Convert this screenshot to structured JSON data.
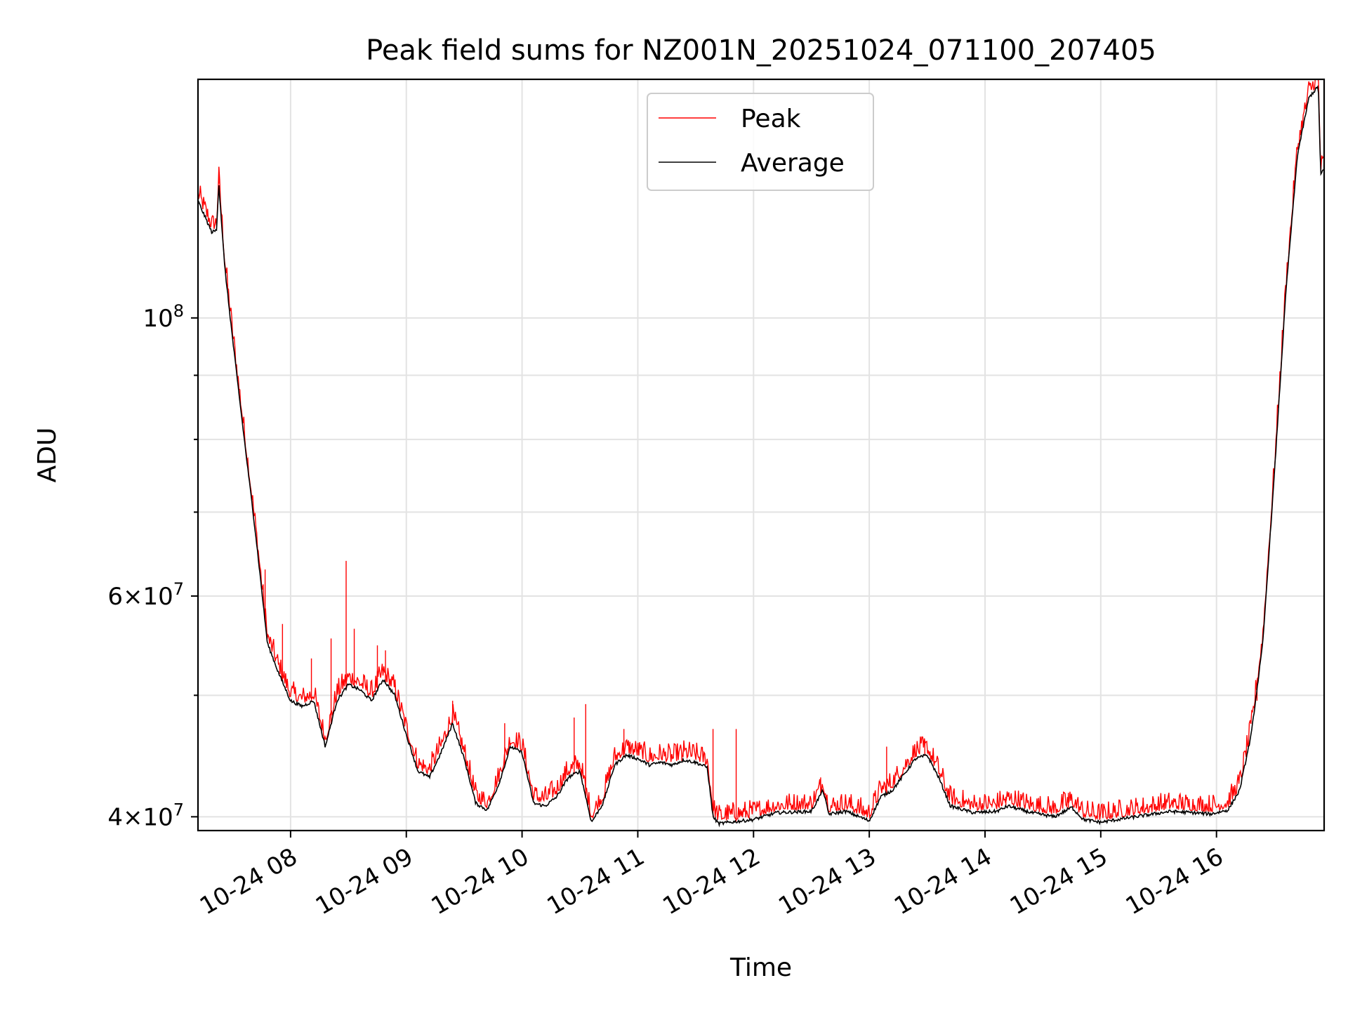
{
  "chart_data": {
    "type": "line",
    "title": "Peak field sums for NZ001N_20251024_071100_207405",
    "xlabel": "Time",
    "ylabel": "ADU",
    "yscale": "log",
    "xlim_hours": [
      7.2,
      16.93
    ],
    "ylim": [
      39000000,
      155000000
    ],
    "grid": true,
    "legend_position": "top-center",
    "colors": {
      "peak": "#ff0000",
      "average": "#000000"
    },
    "x_ticks": [
      {
        "hour": 8,
        "label": "10-24 08"
      },
      {
        "hour": 9,
        "label": "10-24 09"
      },
      {
        "hour": 10,
        "label": "10-24 10"
      },
      {
        "hour": 11,
        "label": "10-24 11"
      },
      {
        "hour": 12,
        "label": "10-24 12"
      },
      {
        "hour": 13,
        "label": "10-24 13"
      },
      {
        "hour": 14,
        "label": "10-24 14"
      },
      {
        "hour": 15,
        "label": "10-24 15"
      },
      {
        "hour": 16,
        "label": "10-24 16"
      }
    ],
    "y_ticks": [
      {
        "value": 40000000,
        "label": "4×10",
        "exp": "7"
      },
      {
        "value": 60000000,
        "label": "6×10",
        "exp": "7"
      },
      {
        "value": 100000000,
        "label": "10",
        "exp": "8"
      }
    ],
    "y_minor_ticks": [
      50000000,
      70000000,
      80000000,
      90000000
    ],
    "series": [
      {
        "name": "Average",
        "color": "#000000",
        "points": [
          [
            7.2,
            124000000
          ],
          [
            7.25,
            121000000
          ],
          [
            7.32,
            117000000
          ],
          [
            7.36,
            117500000
          ],
          [
            7.38,
            128000000
          ],
          [
            7.43,
            110000000
          ],
          [
            7.5,
            96000000
          ],
          [
            7.6,
            80000000
          ],
          [
            7.7,
            67000000
          ],
          [
            7.8,
            55000000
          ],
          [
            7.9,
            52000000
          ],
          [
            8.0,
            49500000
          ],
          [
            8.1,
            49000000
          ],
          [
            8.2,
            49500000
          ],
          [
            8.3,
            45500000
          ],
          [
            8.4,
            49500000
          ],
          [
            8.5,
            51000000
          ],
          [
            8.6,
            50500000
          ],
          [
            8.7,
            49500000
          ],
          [
            8.8,
            51500000
          ],
          [
            8.9,
            50000000
          ],
          [
            9.0,
            46500000
          ],
          [
            9.1,
            43500000
          ],
          [
            9.2,
            43000000
          ],
          [
            9.3,
            45000000
          ],
          [
            9.4,
            47500000
          ],
          [
            9.5,
            44500000
          ],
          [
            9.6,
            41000000
          ],
          [
            9.7,
            40500000
          ],
          [
            9.8,
            42500000
          ],
          [
            9.9,
            45500000
          ],
          [
            10.0,
            45000000
          ],
          [
            10.1,
            41000000
          ],
          [
            10.2,
            40800000
          ],
          [
            10.3,
            41500000
          ],
          [
            10.4,
            43000000
          ],
          [
            10.5,
            43500000
          ],
          [
            10.6,
            39600000
          ],
          [
            10.7,
            41000000
          ],
          [
            10.8,
            44000000
          ],
          [
            10.9,
            44800000
          ],
          [
            11.0,
            44500000
          ],
          [
            11.1,
            44000000
          ],
          [
            11.2,
            44200000
          ],
          [
            11.3,
            44000000
          ],
          [
            11.4,
            44400000
          ],
          [
            11.5,
            44200000
          ],
          [
            11.6,
            43800000
          ],
          [
            11.65,
            40000000
          ],
          [
            11.7,
            39500000
          ],
          [
            11.8,
            39600000
          ],
          [
            11.9,
            39700000
          ],
          [
            12.0,
            39800000
          ],
          [
            12.2,
            40300000
          ],
          [
            12.5,
            40400000
          ],
          [
            12.6,
            42000000
          ],
          [
            12.65,
            40200000
          ],
          [
            12.8,
            40400000
          ],
          [
            13.0,
            39700000
          ],
          [
            13.1,
            41500000
          ],
          [
            13.2,
            42000000
          ],
          [
            13.4,
            44500000
          ],
          [
            13.5,
            44800000
          ],
          [
            13.6,
            43000000
          ],
          [
            13.7,
            40800000
          ],
          [
            13.9,
            40300000
          ],
          [
            14.1,
            40400000
          ],
          [
            14.2,
            40800000
          ],
          [
            14.4,
            40300000
          ],
          [
            14.6,
            40000000
          ],
          [
            14.75,
            40700000
          ],
          [
            14.85,
            39800000
          ],
          [
            15.0,
            39600000
          ],
          [
            15.3,
            40000000
          ],
          [
            15.6,
            40400000
          ],
          [
            15.8,
            40300000
          ],
          [
            15.95,
            40200000
          ],
          [
            16.1,
            40500000
          ],
          [
            16.2,
            42000000
          ],
          [
            16.3,
            46500000
          ],
          [
            16.4,
            55000000
          ],
          [
            16.5,
            75000000
          ],
          [
            16.6,
            105000000
          ],
          [
            16.7,
            135000000
          ],
          [
            16.8,
            150000000
          ],
          [
            16.88,
            153000000
          ],
          [
            16.9,
            130000000
          ],
          [
            16.93,
            131500000
          ]
        ]
      },
      {
        "name": "Peak",
        "color": "#ff0000",
        "spikes": [
          [
            7.38,
            132000000
          ],
          [
            7.78,
            63000000
          ],
          [
            7.93,
            57000000
          ],
          [
            8.18,
            53500000
          ],
          [
            8.35,
            55500000
          ],
          [
            8.48,
            64000000
          ],
          [
            8.55,
            56500000
          ],
          [
            8.75,
            54800000
          ],
          [
            8.82,
            54300000
          ],
          [
            9.4,
            49500000
          ],
          [
            9.85,
            47500000
          ],
          [
            10.45,
            48000000
          ],
          [
            10.55,
            49200000
          ],
          [
            10.88,
            47000000
          ],
          [
            11.38,
            45000000
          ],
          [
            11.65,
            47000000
          ],
          [
            11.85,
            47000000
          ],
          [
            12.58,
            43000000
          ],
          [
            13.15,
            45500000
          ],
          [
            13.48,
            46000000
          ],
          [
            14.18,
            41500000
          ],
          [
            14.72,
            41800000
          ],
          [
            16.35,
            49500000
          ]
        ]
      }
    ]
  },
  "legend": {
    "peak_label": "Peak",
    "average_label": "Average"
  }
}
